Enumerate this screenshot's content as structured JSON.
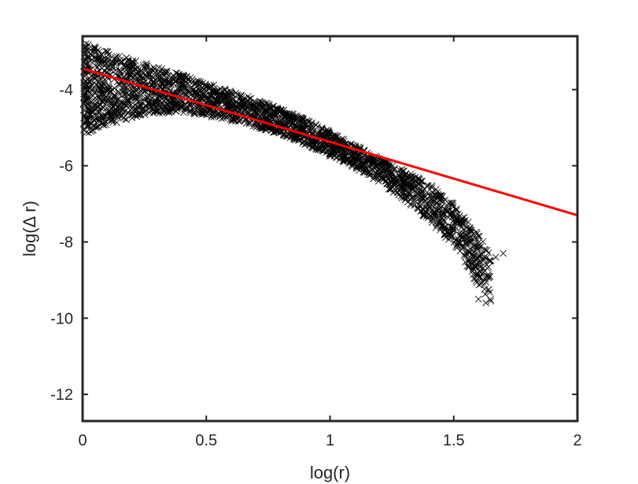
{
  "chart_data": {
    "type": "scatter",
    "title": "",
    "xlabel": "log(r)",
    "ylabel": "log(Δ r)",
    "xlim": [
      0,
      2
    ],
    "ylim": [
      -12.7,
      -2.6
    ],
    "xticks": [
      0,
      0.5,
      1,
      1.5,
      2
    ],
    "xtick_labels": [
      "0",
      "0.5",
      "1",
      "1.5",
      "2"
    ],
    "yticks": [
      -12,
      -10,
      -8,
      -6,
      -4
    ],
    "ytick_labels": [
      "-12",
      "-10",
      "-8",
      "-6",
      "-4"
    ],
    "grid": false,
    "legend": "none",
    "colors": {
      "points": "#000000",
      "fit_line": "#ff0000",
      "axes": "#262626"
    },
    "scatter_marker": "x",
    "scatter_band": {
      "description_points": [
        {
          "x": 0.0,
          "y_top": -2.75,
          "y_bottom": -5.2
        },
        {
          "x": 0.1,
          "y_top": -3.0,
          "y_bottom": -4.95
        },
        {
          "x": 0.2,
          "y_top": -3.2,
          "y_bottom": -4.75
        },
        {
          "x": 0.3,
          "y_top": -3.4,
          "y_bottom": -4.62
        },
        {
          "x": 0.4,
          "y_top": -3.6,
          "y_bottom": -4.62
        },
        {
          "x": 0.5,
          "y_top": -3.82,
          "y_bottom": -4.7
        },
        {
          "x": 0.6,
          "y_top": -4.02,
          "y_bottom": -4.82
        },
        {
          "x": 0.7,
          "y_top": -4.25,
          "y_bottom": -4.98
        },
        {
          "x": 0.8,
          "y_top": -4.5,
          "y_bottom": -5.18
        },
        {
          "x": 0.9,
          "y_top": -4.78,
          "y_bottom": -5.45
        },
        {
          "x": 1.0,
          "y_top": -5.1,
          "y_bottom": -5.75
        },
        {
          "x": 1.1,
          "y_top": -5.45,
          "y_bottom": -6.05
        },
        {
          "x": 1.2,
          "y_top": -5.8,
          "y_bottom": -6.45
        },
        {
          "x": 1.3,
          "y_top": -6.1,
          "y_bottom": -6.9
        },
        {
          "x": 1.4,
          "y_top": -6.45,
          "y_bottom": -7.45
        },
        {
          "x": 1.5,
          "y_top": -7.0,
          "y_bottom": -8.1
        },
        {
          "x": 1.55,
          "y_top": -7.4,
          "y_bottom": -8.6
        },
        {
          "x": 1.6,
          "y_top": -7.8,
          "y_bottom": -9.2
        },
        {
          "x": 1.65,
          "y_top": -8.3,
          "y_bottom": -9.6
        }
      ],
      "outliers": [
        {
          "x": 1.6,
          "y": -9.5
        },
        {
          "x": 1.63,
          "y": -9.6
        },
        {
          "x": 1.65,
          "y": -9.55
        },
        {
          "x": 1.67,
          "y": -8.4
        },
        {
          "x": 1.7,
          "y": -8.3
        },
        {
          "x": 1.64,
          "y": -8.9
        }
      ]
    },
    "fit_line": {
      "x": [
        0,
        2
      ],
      "y": [
        -3.45,
        -7.3
      ]
    }
  }
}
